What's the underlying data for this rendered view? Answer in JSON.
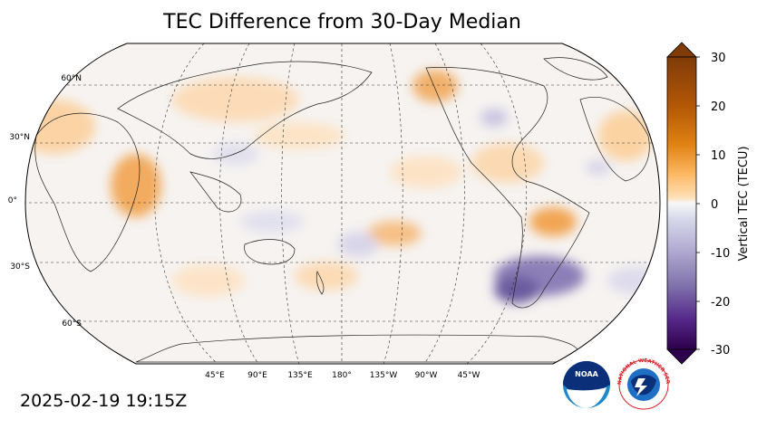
{
  "title": "TEC Difference from 30-Day Median",
  "timestamp": "2025-02-19 19:15Z",
  "map": {
    "lat_labels": [
      "60°N",
      "30°N",
      "0°",
      "30°S",
      "60°S"
    ],
    "lon_labels": [
      "45°E",
      "90°E",
      "135°E",
      "180°",
      "135°W",
      "90°W",
      "45°W"
    ],
    "central_longitude": 180,
    "projection": "Robinson",
    "anomalies": [
      {
        "name": "africa-positive",
        "sign": "positive"
      },
      {
        "name": "pacific-positive",
        "sign": "positive"
      },
      {
        "name": "south-america-positive",
        "sign": "positive"
      },
      {
        "name": "north-pacific-positive",
        "sign": "positive"
      },
      {
        "name": "south-atlantic-negative",
        "sign": "negative"
      },
      {
        "name": "east-pacific-negative",
        "sign": "negative"
      }
    ]
  },
  "colorbar": {
    "label": "Vertical TEC (TECU)",
    "ticks": [
      "30",
      "20",
      "10",
      "0",
      "-10",
      "-20",
      "-30"
    ],
    "range": [
      -30,
      30
    ],
    "colormap": "PuOr_r",
    "colors": {
      "max": "#7f3b08",
      "high": "#e08214",
      "mid_pos": "#fdb863",
      "zero": "#f7f7f7",
      "mid_neg": "#b2abd2",
      "low": "#8073ac",
      "min": "#2d004b"
    }
  },
  "logos": {
    "noaa": "NOAA",
    "nws": "NATIONAL WEATHER SERVICE"
  }
}
